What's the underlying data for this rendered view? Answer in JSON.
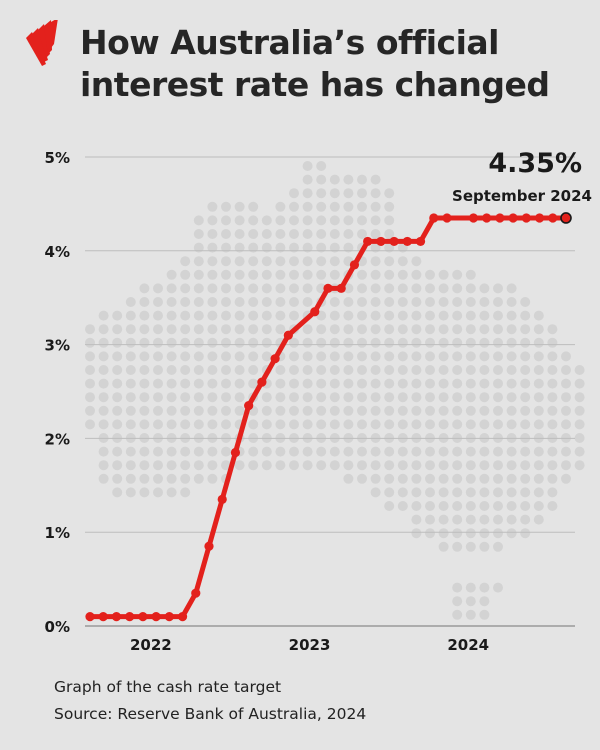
{
  "header": {
    "title_line1": "How Australia’s official",
    "title_line2": "interest rate has changed",
    "logo": "sbs-logo"
  },
  "chart_data": {
    "type": "line",
    "title": "How Australia’s official interest rate has changed",
    "xlabel": "",
    "ylabel": "",
    "ylim": [
      0,
      5
    ],
    "y_ticks": [
      "0%",
      "1%",
      "2%",
      "3%",
      "4%",
      "5%"
    ],
    "x_ticks": [
      "2022",
      "2023",
      "2024"
    ],
    "grid": true,
    "line_color": "#e3211c",
    "series": [
      {
        "x": [
          "2021-09",
          "2021-10",
          "2021-11",
          "2021-12",
          "2022-01",
          "2022-02",
          "2022-03",
          "2022-04",
          "2022-05",
          "2022-06",
          "2022-07",
          "2022-08",
          "2022-09",
          "2022-10",
          "2022-11",
          "2022-12",
          "2023-02",
          "2023-03",
          "2023-04",
          "2023-05",
          "2023-06",
          "2023-07",
          "2023-08",
          "2023-09",
          "2023-10",
          "2023-11",
          "2023-12",
          "2024-02",
          "2024-03",
          "2024-04",
          "2024-05",
          "2024-06",
          "2024-07",
          "2024-08",
          "2024-09"
        ],
        "values": [
          0.1,
          0.1,
          0.1,
          0.1,
          0.1,
          0.1,
          0.1,
          0.1,
          0.35,
          0.85,
          1.35,
          1.85,
          2.35,
          2.6,
          2.85,
          3.1,
          3.35,
          3.6,
          3.6,
          3.85,
          4.1,
          4.1,
          4.1,
          4.1,
          4.1,
          4.35,
          4.35,
          4.35,
          4.35,
          4.35,
          4.35,
          4.35,
          4.35,
          4.35,
          4.35
        ]
      }
    ],
    "annotation": {
      "value": "4.35%",
      "label": "September 2024"
    }
  },
  "footer": {
    "caption": "Graph of the cash rate target",
    "source": "Source: Reserve Bank of Australia, 2024"
  }
}
